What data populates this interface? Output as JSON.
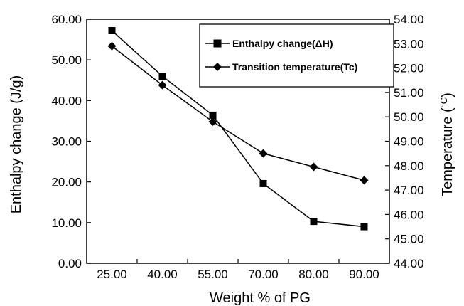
{
  "chart_data": {
    "type": "line",
    "categories": [
      "25.00",
      "40.00",
      "55.00",
      "70.00",
      "80.00",
      "90.00"
    ],
    "xlabel": "Weight % of PG",
    "ylabel_left": "Enthalpy change (J/g)",
    "ylabel_right_prefix": "Temperature (",
    "ylabel_right_unit": "°C",
    "ylabel_right_suffix": ")",
    "ylim_left": [
      0,
      60
    ],
    "yticks_left": [
      "0.00",
      "10.00",
      "20.00",
      "30.00",
      "40.00",
      "50.00",
      "60.00"
    ],
    "ylim_right": [
      44,
      54
    ],
    "yticks_right": [
      "44.00",
      "45.00",
      "46.00",
      "47.00",
      "48.00",
      "49.00",
      "50.00",
      "51.00",
      "52.00",
      "53.00",
      "54.00"
    ],
    "legend_position": "top-right",
    "grid": false,
    "series": [
      {
        "name": "Enthalpy change(ΔH)",
        "axis": "left",
        "marker": "square",
        "values": [
          57.2,
          46.0,
          36.4,
          19.6,
          10.3,
          9.0
        ]
      },
      {
        "name": "Transition temperature(Tc)",
        "axis": "right",
        "marker": "diamond",
        "values": [
          52.9,
          51.3,
          49.8,
          48.5,
          47.95,
          47.4
        ]
      }
    ]
  }
}
